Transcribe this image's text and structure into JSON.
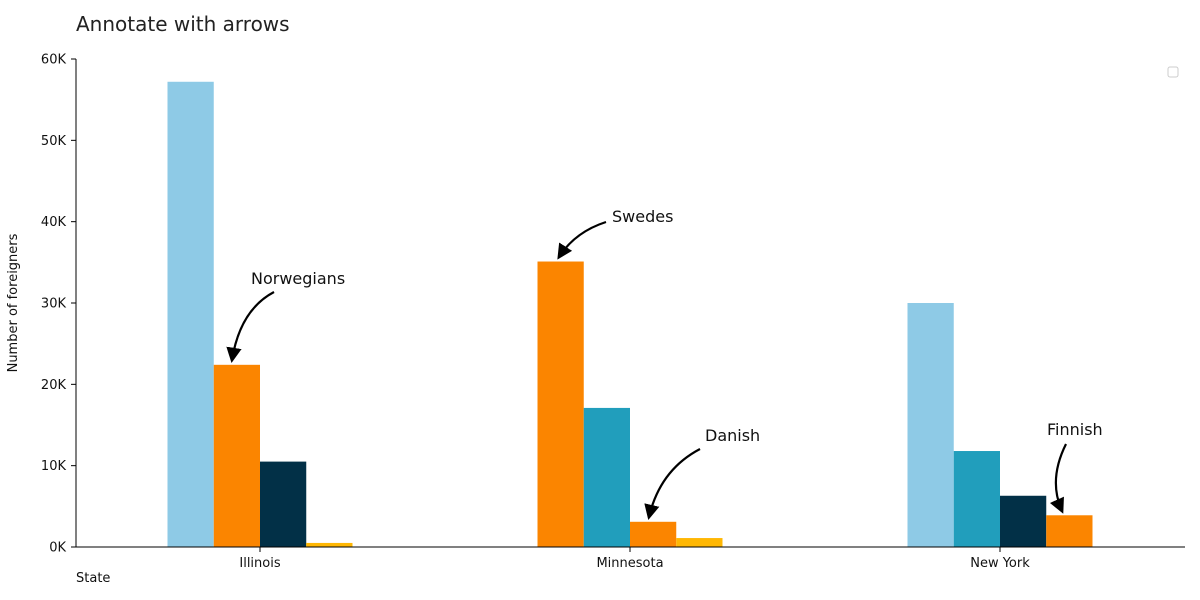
{
  "chart_data": {
    "type": "bar",
    "title": "Annotate with arrows",
    "xlabel": "State",
    "ylabel": "Number of foreigners",
    "categories": [
      "Illinois",
      "Minnesota",
      "New York"
    ],
    "ylim": [
      0,
      60000
    ],
    "yticks": [
      0,
      10000,
      20000,
      30000,
      40000,
      50000,
      60000
    ],
    "ytick_labels": [
      "0K",
      "10K",
      "20K",
      "30K",
      "40K",
      "50K",
      "60K"
    ],
    "grid": false,
    "legend": {
      "placement": "top-right",
      "entries": []
    },
    "groups": [
      {
        "category": "Illinois",
        "bars": [
          {
            "value": 57200,
            "color": "#8ecae6"
          },
          {
            "value": 22400,
            "color": "#fb8500"
          },
          {
            "value": 10500,
            "color": "#023047"
          },
          {
            "value": 500,
            "color": "#ffb703"
          }
        ]
      },
      {
        "category": "Minnesota",
        "bars": [
          {
            "value": 35100,
            "color": "#fb8500"
          },
          {
            "value": 17100,
            "color": "#219ebc"
          },
          {
            "value": 3100,
            "color": "#fb8500"
          },
          {
            "value": 1100,
            "color": "#ffb703"
          }
        ]
      },
      {
        "category": "New York",
        "bars": [
          {
            "value": 30000,
            "color": "#8ecae6"
          },
          {
            "value": 11800,
            "color": "#219ebc"
          },
          {
            "value": 6300,
            "color": "#023047"
          },
          {
            "value": 3900,
            "color": "#fb8500"
          }
        ]
      }
    ],
    "annotations": [
      {
        "text": "Norwegians",
        "category": "Illinois",
        "bar": 1
      },
      {
        "text": "Swedes",
        "category": "Minnesota",
        "bar": 0
      },
      {
        "text": "Danish",
        "category": "Minnesota",
        "bar": 2
      },
      {
        "text": "Finnish",
        "category": "New York",
        "bar": 3
      }
    ]
  }
}
